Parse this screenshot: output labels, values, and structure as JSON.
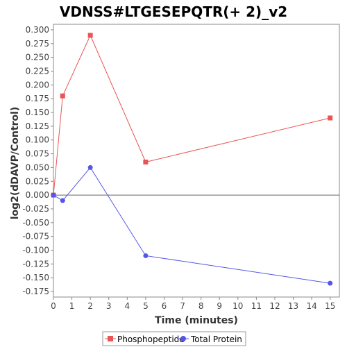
{
  "chart_data": {
    "type": "line",
    "title": "VDNSS#LTGESEPQTR(+ 2)_v2",
    "xlabel": "Time (minutes)",
    "ylabel": "log2(dDAVP/Control)",
    "xlim": [
      0,
      15.5
    ],
    "ylim": [
      -0.185,
      0.31
    ],
    "x_ticks": [
      0,
      1,
      2,
      3,
      4,
      5,
      6,
      7,
      8,
      9,
      10,
      11,
      12,
      13,
      14,
      15
    ],
    "y_ticks": [
      -0.175,
      -0.15,
      -0.125,
      -0.1,
      -0.075,
      -0.05,
      -0.025,
      0,
      0.025,
      0.05,
      0.075,
      0.1,
      0.125,
      0.15,
      0.175,
      0.2,
      0.225,
      0.25,
      0.275,
      0.3
    ],
    "y_tick_labels": [
      "-0.175",
      "-0.150",
      "-0.125",
      "-0.100",
      "-0.075",
      "-0.050",
      "-0.025",
      "0.000",
      "0.025",
      "0.050",
      "0.075",
      "0.100",
      "0.125",
      "0.150",
      "0.175",
      "0.200",
      "0.225",
      "0.250",
      "0.275",
      "0.300"
    ],
    "zero_line": true,
    "grid": false,
    "legend_position": "bottom",
    "series": [
      {
        "name": "Phosphopeptide",
        "color": "#e85555",
        "marker": "square",
        "x": [
          0,
          0.5,
          2,
          5,
          15
        ],
        "y": [
          0.0,
          0.18,
          0.29,
          0.06,
          0.14
        ]
      },
      {
        "name": "Total Protein",
        "color": "#5555e8",
        "marker": "circle",
        "x": [
          0,
          0.5,
          2,
          5,
          15
        ],
        "y": [
          0.0,
          -0.01,
          0.05,
          -0.11,
          -0.16
        ]
      }
    ]
  }
}
